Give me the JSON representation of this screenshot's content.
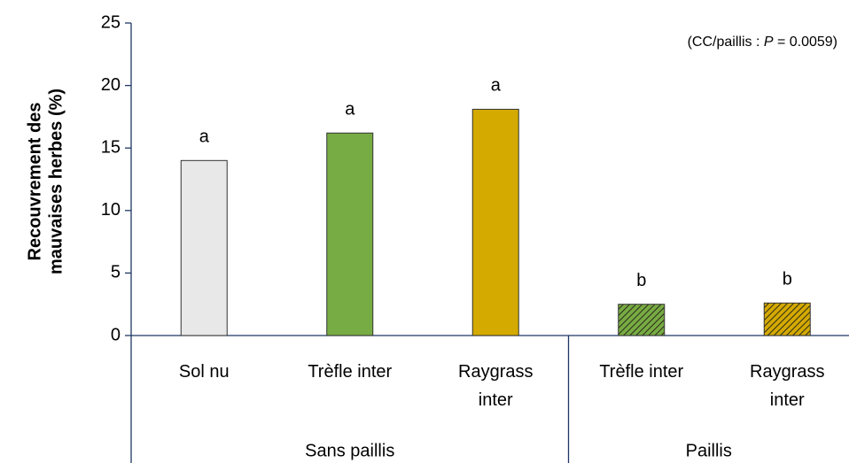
{
  "chart_data": {
    "type": "bar",
    "y_label": [
      "Recouvrement des",
      "mauvaises herbes  (%)"
    ],
    "annotation": [
      "(CC/paillis : ",
      "P",
      " = 0.0059)"
    ],
    "categories": [
      "Sol nu",
      "Trèfle inter",
      "Raygrass inter",
      "Trèfle inter",
      "Raygrass inter"
    ],
    "groups": [
      {
        "name": "Sans paillis",
        "span": 3
      },
      {
        "name": "Paillis",
        "span": 2
      }
    ],
    "values": [
      14,
      16.2,
      18.1,
      2.5,
      2.6
    ],
    "significance_labels": [
      "a",
      "a",
      "a",
      "b",
      "b"
    ],
    "colors": [
      "#e8e8e8",
      "#77ab43",
      "#d4a900",
      "#77ab43",
      "#d4a900"
    ],
    "hatched": [
      false,
      false,
      false,
      true,
      true
    ],
    "ylim": [
      0,
      25
    ],
    "yticks": [
      0,
      5,
      10,
      15,
      20,
      25
    ],
    "grid": false
  }
}
